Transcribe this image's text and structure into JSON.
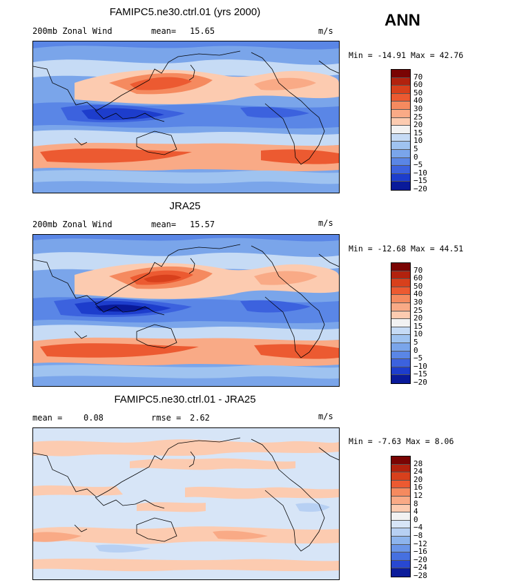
{
  "season": "ANN",
  "panels": [
    {
      "title": "FAMIPC5.ne30.ctrl.01 (yrs 2000)",
      "left_label": "200mb Zonal Wind",
      "stat_label": "mean=",
      "stat_value": "15.65",
      "stat2_label": "",
      "stat2_value": "",
      "units": "m/s",
      "min_label": "Min =",
      "min": "-14.91",
      "max_label": "Max =",
      "max": "42.76",
      "levels": [
        "70",
        "60",
        "50",
        "40",
        "30",
        "25",
        "20",
        "15",
        "10",
        "5",
        "0",
        "-5",
        "-10",
        "-15",
        "-20"
      ],
      "colors": [
        "#7a0403",
        "#b2220e",
        "#d8401c",
        "#ec5a31",
        "#f58a5f",
        "#f9aa86",
        "#fccbb0",
        "#f2f2f2",
        "#c6dbf5",
        "#9fc3f0",
        "#7aa5ea",
        "#5a86e6",
        "#3c62de",
        "#1d3dcc",
        "#091a9a"
      ]
    },
    {
      "title": "JRA25",
      "left_label": "200mb Zonal Wind",
      "stat_label": "mean=",
      "stat_value": "15.57",
      "stat2_label": "",
      "stat2_value": "",
      "units": "m/s",
      "min_label": "Min =",
      "min": "-12.68",
      "max_label": "Max =",
      "max": "44.51",
      "levels": [
        "70",
        "60",
        "50",
        "40",
        "30",
        "25",
        "20",
        "15",
        "10",
        "5",
        "0",
        "-5",
        "-10",
        "-15",
        "-20"
      ],
      "colors": [
        "#7a0403",
        "#b2220e",
        "#d8401c",
        "#ec5a31",
        "#f58a5f",
        "#f9aa86",
        "#fccbb0",
        "#f2f2f2",
        "#c6dbf5",
        "#9fc3f0",
        "#7aa5ea",
        "#5a86e6",
        "#3c62de",
        "#1d3dcc",
        "#091a9a"
      ]
    },
    {
      "title": "FAMIPC5.ne30.ctrl.01 - JRA25",
      "left_label": "mean =",
      "stat_label": "",
      "stat_value": "0.08",
      "stat2_label": "rmse =",
      "stat2_value": "2.62",
      "units": "m/s",
      "min_label": "Min =",
      "min": "-7.63",
      "max_label": "Max =",
      "max": "8.06",
      "levels": [
        "28",
        "24",
        "20",
        "16",
        "12",
        "8",
        "4",
        "0",
        "-4",
        "-8",
        "-12",
        "-16",
        "-20",
        "-24",
        "-28"
      ],
      "colors": [
        "#7a0403",
        "#b2220e",
        "#d8401c",
        "#ec5a31",
        "#f58a5f",
        "#f9aa86",
        "#fccbb0",
        "#f2f2f2",
        "#d7e5f7",
        "#b7d0f3",
        "#8db4ed",
        "#6a95e8",
        "#4670e0",
        "#2848d2",
        "#0b1c9a"
      ]
    }
  ]
}
